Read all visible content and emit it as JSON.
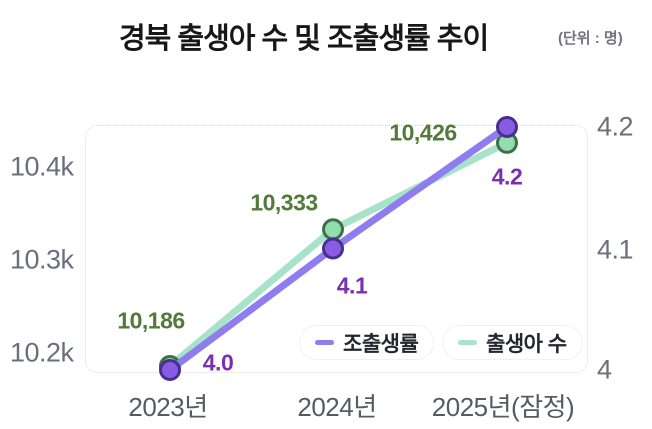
{
  "header": {
    "title": "경북 출생아 수 및 조출생률 추이",
    "unit": "(단위 : 명)"
  },
  "colors": {
    "births_line": "#a6e3c9",
    "births_marker": "#93dcae",
    "births_marker_stroke": "#3e6f4a",
    "births_text": "#527a3a",
    "rate_line": "#8f7cee",
    "rate_marker": "#8a5ce4",
    "rate_marker_stroke": "#46308e",
    "rate_text": "#7b2fae",
    "axis_text": "#6a707b",
    "title_text": "#171717"
  },
  "chart_data": {
    "type": "line",
    "title": "경북 출생아 수 및 조출생률 추이",
    "unit_note": "(단위 : 명)",
    "categories": [
      "2023년",
      "2024년",
      "2025년(잠정)"
    ],
    "series": [
      {
        "name": "출생아 수",
        "axis": "left",
        "values": [
          10186,
          10333,
          10426
        ],
        "labels": [
          "10,186",
          "10,333",
          "10,426"
        ]
      },
      {
        "name": "조출생률",
        "axis": "right",
        "values": [
          4.0,
          4.1,
          4.2
        ],
        "labels": [
          "4.0",
          "4.1",
          "4.2"
        ]
      }
    ],
    "left_axis": {
      "tick_labels": [
        "10.2k",
        "10.3k",
        "10.4k"
      ],
      "range": [
        10150,
        10470
      ]
    },
    "right_axis": {
      "tick_labels": [
        "4",
        "4.1",
        "4.2"
      ],
      "range": [
        4.0,
        4.2
      ]
    },
    "grid": "dotted plot border only, no interior gridlines",
    "legend_position": "inside bottom-right, pill style"
  }
}
